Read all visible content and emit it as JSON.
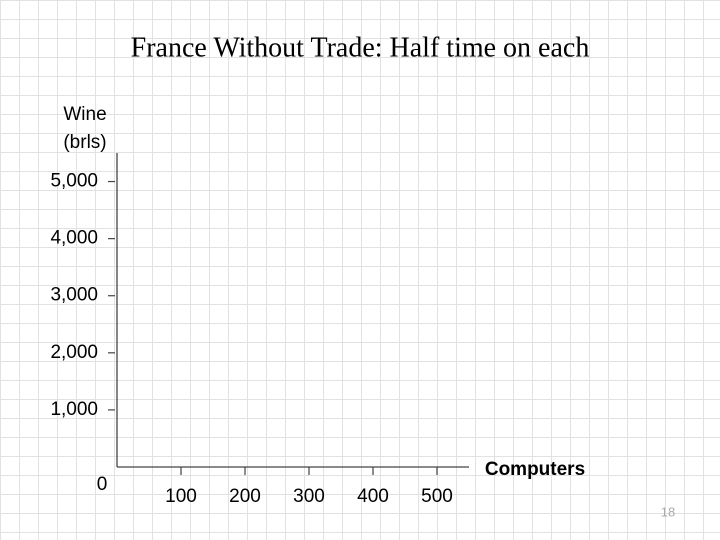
{
  "chart_data": {
    "type": "line",
    "title": "France Without Trade: Half time on each",
    "y_label_lines": [
      "Wine",
      "(brls)"
    ],
    "x_label": "Computers",
    "series": [],
    "xlim": [
      0,
      550
    ],
    "xticks": [
      100,
      200,
      300,
      400,
      500
    ],
    "ylim": [
      0,
      5500
    ],
    "yticks": [
      0,
      {
        "value": 1000,
        "label": "1,000"
      },
      {
        "value": 2000,
        "label": "2,000"
      },
      {
        "value": 3000,
        "label": "3,000"
      },
      {
        "value": 4000,
        "label": "4,000"
      },
      {
        "value": 5000,
        "label": "5,000"
      }
    ],
    "grid": false
  },
  "slide_number": "18"
}
